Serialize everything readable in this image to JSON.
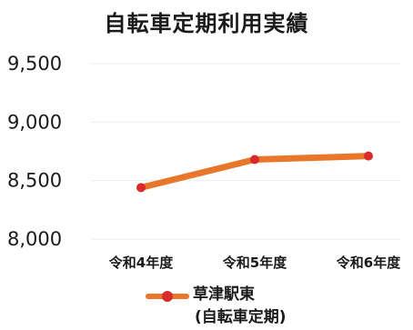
{
  "chart_data": {
    "type": "line",
    "title": "自転車定期利用実績",
    "categories": [
      "令和4年度",
      "令和5年度",
      "令和6年度"
    ],
    "series": [
      {
        "name": "草津駅東",
        "name_sub": "(自転車定期)",
        "values": [
          8440,
          8680,
          8710
        ]
      }
    ],
    "ylim": [
      8000,
      9500
    ],
    "yticks": [
      "9,500",
      "9,000",
      "8,500",
      "8,000"
    ],
    "ytick_values": [
      9500,
      9000,
      8500,
      8000
    ],
    "grid": true,
    "legend": "bottom",
    "line_color": "#e8762b",
    "marker_color": "#d92b2b",
    "grid_color": "#ececec"
  }
}
